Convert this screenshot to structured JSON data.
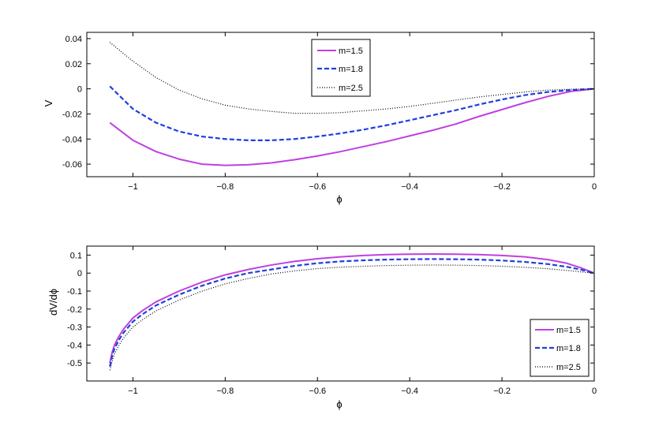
{
  "chart_data": [
    {
      "type": "line",
      "title": "",
      "xlabel": "ϕ",
      "ylabel": "V",
      "xlim": [
        -1.1,
        0
      ],
      "ylim": [
        -0.07,
        0.045
      ],
      "xticks": [
        -1,
        -0.8,
        -0.6,
        -0.4,
        -0.2,
        0
      ],
      "xtick_labels": [
        "−1",
        "−0.8",
        "−0.6",
        "−0.4",
        "−0.2",
        "0"
      ],
      "yticks": [
        -0.06,
        -0.04,
        -0.02,
        0,
        0.02,
        0.04
      ],
      "ytick_labels": [
        "-0.06",
        "-0.04",
        "-0.02",
        "0",
        "0.02",
        "0.04"
      ],
      "grid": false,
      "legend_position": "top-center",
      "series": [
        {
          "name": "m=1.5",
          "color": "#bf40e0",
          "dash": "solid",
          "x": [
            -1.05,
            -1.0,
            -0.95,
            -0.9,
            -0.85,
            -0.8,
            -0.75,
            -0.7,
            -0.65,
            -0.6,
            -0.55,
            -0.5,
            -0.45,
            -0.4,
            -0.35,
            -0.3,
            -0.25,
            -0.2,
            -0.15,
            -0.1,
            -0.05,
            0
          ],
          "y": [
            -0.027,
            -0.041,
            -0.05,
            -0.056,
            -0.06,
            -0.061,
            -0.0605,
            -0.059,
            -0.0565,
            -0.0535,
            -0.05,
            -0.046,
            -0.042,
            -0.0375,
            -0.033,
            -0.028,
            -0.022,
            -0.0165,
            -0.011,
            -0.006,
            -0.002,
            0
          ]
        },
        {
          "name": "m=1.8",
          "color": "#1f3fe0",
          "dash": "dashed",
          "x": [
            -1.05,
            -1.0,
            -0.95,
            -0.9,
            -0.85,
            -0.8,
            -0.75,
            -0.7,
            -0.65,
            -0.6,
            -0.55,
            -0.5,
            -0.45,
            -0.4,
            -0.35,
            -0.3,
            -0.25,
            -0.2,
            -0.15,
            -0.1,
            -0.05,
            0
          ],
          "y": [
            0.002,
            -0.016,
            -0.027,
            -0.034,
            -0.038,
            -0.04,
            -0.041,
            -0.041,
            -0.04,
            -0.038,
            -0.0355,
            -0.0325,
            -0.029,
            -0.025,
            -0.021,
            -0.017,
            -0.0125,
            -0.0085,
            -0.005,
            -0.0025,
            -0.001,
            0
          ]
        },
        {
          "name": "m=2.5",
          "color": "#000000",
          "dash": "dotted",
          "x": [
            -1.05,
            -1.0,
            -0.95,
            -0.9,
            -0.85,
            -0.8,
            -0.75,
            -0.7,
            -0.65,
            -0.6,
            -0.55,
            -0.5,
            -0.45,
            -0.4,
            -0.35,
            -0.3,
            -0.25,
            -0.2,
            -0.15,
            -0.1,
            -0.05,
            0
          ],
          "y": [
            0.037,
            0.022,
            0.009,
            -0.001,
            -0.008,
            -0.013,
            -0.016,
            -0.018,
            -0.0195,
            -0.0195,
            -0.019,
            -0.0175,
            -0.016,
            -0.014,
            -0.0115,
            -0.009,
            -0.0065,
            -0.0045,
            -0.0025,
            -0.001,
            -0.0003,
            0
          ]
        }
      ]
    },
    {
      "type": "line",
      "title": "",
      "xlabel": "ϕ",
      "ylabel": "dV/dϕ",
      "xlim": [
        -1.1,
        0
      ],
      "ylim": [
        -0.6,
        0.15
      ],
      "xticks": [
        -1,
        -0.8,
        -0.6,
        -0.4,
        -0.2,
        0
      ],
      "xtick_labels": [
        "−1",
        "−0.8",
        "−0.6",
        "−0.4",
        "−0.2",
        "0"
      ],
      "yticks": [
        -0.5,
        -0.4,
        -0.3,
        -0.2,
        -0.1,
        0,
        0.1
      ],
      "ytick_labels": [
        "-0.5",
        "-0.4",
        "-0.3",
        "-0.2",
        "-0.1",
        "0",
        "0.1"
      ],
      "grid": false,
      "legend_position": "bottom-right",
      "series": [
        {
          "name": "m=1.5",
          "color": "#bf40e0",
          "dash": "solid",
          "x": [
            -1.05,
            -1.045,
            -1.04,
            -1.03,
            -1.02,
            -1.0,
            -0.98,
            -0.95,
            -0.9,
            -0.85,
            -0.8,
            -0.75,
            -0.7,
            -0.65,
            -0.6,
            -0.55,
            -0.5,
            -0.45,
            -0.4,
            -0.35,
            -0.3,
            -0.25,
            -0.2,
            -0.15,
            -0.1,
            -0.06,
            -0.03,
            -0.01,
            0
          ],
          "y": [
            -0.5,
            -0.44,
            -0.4,
            -0.35,
            -0.31,
            -0.25,
            -0.21,
            -0.16,
            -0.1,
            -0.05,
            -0.01,
            0.02,
            0.045,
            0.065,
            0.08,
            0.09,
            0.098,
            0.103,
            0.105,
            0.106,
            0.105,
            0.103,
            0.098,
            0.09,
            0.075,
            0.055,
            0.03,
            0.01,
            0
          ]
        },
        {
          "name": "m=1.8",
          "color": "#1f3fe0",
          "dash": "dashed",
          "x": [
            -1.05,
            -1.045,
            -1.04,
            -1.03,
            -1.02,
            -1.0,
            -0.98,
            -0.95,
            -0.9,
            -0.85,
            -0.8,
            -0.75,
            -0.7,
            -0.65,
            -0.6,
            -0.55,
            -0.5,
            -0.45,
            -0.4,
            -0.35,
            -0.3,
            -0.25,
            -0.2,
            -0.15,
            -0.1,
            -0.06,
            -0.03,
            -0.01,
            0
          ],
          "y": [
            -0.52,
            -0.46,
            -0.42,
            -0.37,
            -0.33,
            -0.27,
            -0.23,
            -0.18,
            -0.12,
            -0.07,
            -0.03,
            0.0,
            0.02,
            0.04,
            0.055,
            0.065,
            0.071,
            0.075,
            0.077,
            0.078,
            0.077,
            0.075,
            0.07,
            0.062,
            0.05,
            0.035,
            0.02,
            0.006,
            0
          ]
        },
        {
          "name": "m=2.5",
          "color": "#000000",
          "dash": "dotted",
          "x": [
            -1.05,
            -1.045,
            -1.04,
            -1.03,
            -1.02,
            -1.0,
            -0.98,
            -0.95,
            -0.9,
            -0.85,
            -0.8,
            -0.75,
            -0.7,
            -0.65,
            -0.6,
            -0.55,
            -0.5,
            -0.45,
            -0.4,
            -0.35,
            -0.3,
            -0.25,
            -0.2,
            -0.15,
            -0.1,
            -0.06,
            -0.03,
            -0.01,
            0
          ],
          "y": [
            -0.54,
            -0.49,
            -0.45,
            -0.4,
            -0.36,
            -0.3,
            -0.26,
            -0.21,
            -0.15,
            -0.1,
            -0.06,
            -0.03,
            -0.005,
            0.012,
            0.025,
            0.033,
            0.038,
            0.042,
            0.044,
            0.045,
            0.044,
            0.042,
            0.038,
            0.032,
            0.024,
            0.015,
            0.007,
            0.002,
            0
          ]
        }
      ]
    }
  ]
}
